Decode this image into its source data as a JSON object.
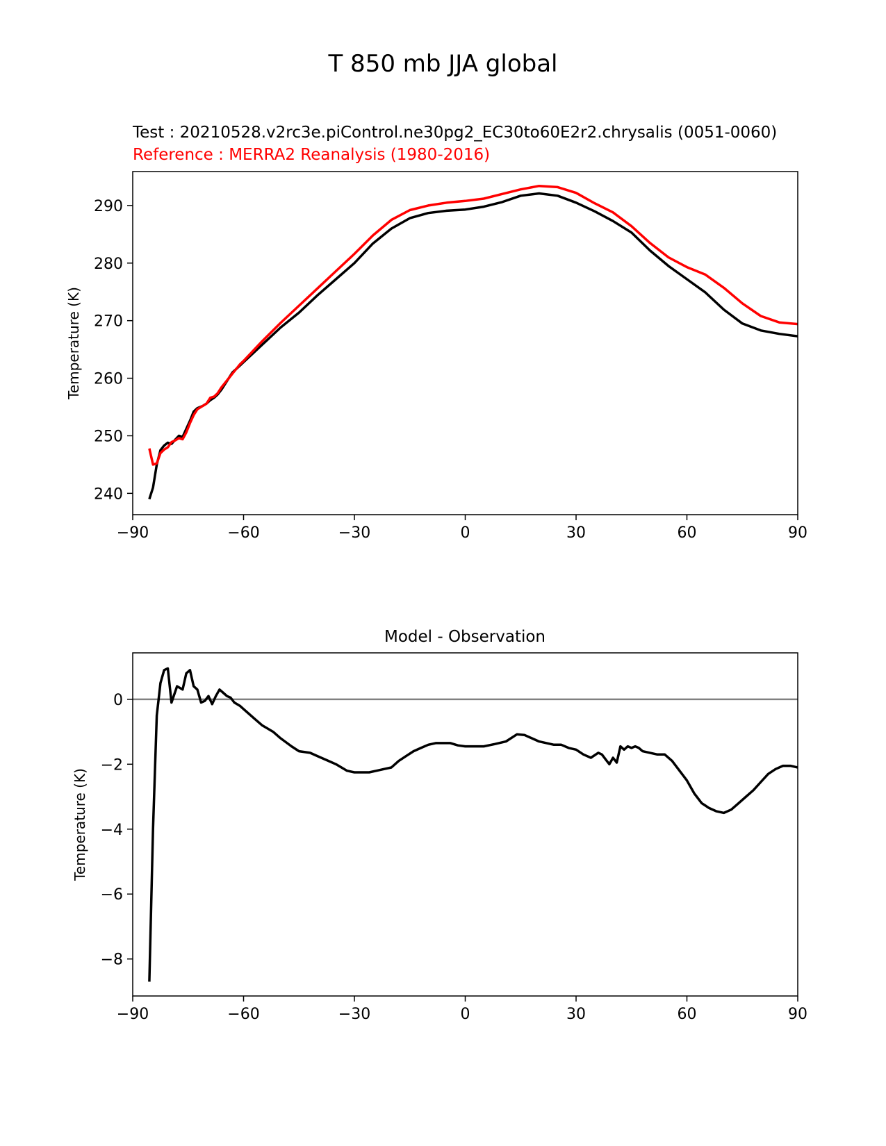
{
  "figure": {
    "title": "T 850 mb JJA global"
  },
  "chart_data": [
    {
      "type": "line",
      "test_label": "Test : 20210528.v2rc3e.piControl.ne30pg2_EC30to60E2r2.chrysalis (0051-0060)",
      "reference_label": "Reference : MERRA2 Reanalysis (1980-2016)",
      "xlabel": "",
      "ylabel": "Temperature (K)",
      "xlim": [
        -90,
        90
      ],
      "ylim": [
        236.3,
        295.9
      ],
      "xticks": [
        -90,
        -60,
        -30,
        0,
        30,
        60,
        90
      ],
      "xtick_labels": [
        "−90",
        "−60",
        "−30",
        "0",
        "30",
        "60",
        "90"
      ],
      "yticks": [
        240,
        250,
        260,
        270,
        280,
        290
      ],
      "ytick_labels": [
        "240",
        "250",
        "260",
        "270",
        "280",
        "290"
      ],
      "colors": {
        "test": "#000000",
        "reference": "#ff0000"
      },
      "series": [
        {
          "name": "Test",
          "color": "#000000",
          "x": [
            -85.5,
            -84.5,
            -83.5,
            -82.5,
            -81.5,
            -80.5,
            -79.5,
            -78.5,
            -77.5,
            -76.5,
            -75.5,
            -74.5,
            -73.5,
            -72.5,
            -71,
            -70,
            -69,
            -68,
            -67,
            -66,
            -65,
            -64,
            -63,
            -62,
            -61,
            -60,
            -55,
            -50,
            -45,
            -40,
            -35,
            -30,
            -25,
            -20,
            -15,
            -10,
            -5,
            0,
            5,
            10,
            15,
            20,
            25,
            30,
            35,
            40,
            45,
            50,
            55,
            60,
            65,
            70,
            75,
            80,
            85,
            90
          ],
          "values": [
            239.0,
            241.0,
            245.0,
            247.5,
            248.3,
            248.8,
            248.6,
            249.3,
            250.0,
            249.8,
            251.2,
            252.6,
            254.2,
            254.8,
            255.2,
            255.6,
            256.2,
            256.6,
            257.2,
            258.0,
            259.0,
            260.0,
            261.0,
            261.6,
            262.2,
            262.8,
            265.8,
            268.8,
            271.4,
            274.4,
            277.2,
            280.0,
            283.4,
            286.0,
            287.8,
            288.7,
            289.1,
            289.3,
            289.8,
            290.6,
            291.7,
            292.1,
            291.7,
            290.5,
            289.0,
            287.3,
            285.3,
            282.2,
            279.5,
            277.2,
            274.9,
            271.9,
            269.5,
            268.3,
            267.7,
            267.3
          ]
        },
        {
          "name": "Reference",
          "color": "#ff0000",
          "x": [
            -85.5,
            -84.5,
            -83.5,
            -82.5,
            -81.5,
            -80.5,
            -79.5,
            -78.5,
            -77.5,
            -76.5,
            -75.5,
            -74.5,
            -73.5,
            -72.5,
            -71,
            -70,
            -69,
            -68,
            -67,
            -66,
            -65,
            -64,
            -63,
            -62,
            -61,
            -60,
            -55,
            -50,
            -45,
            -40,
            -35,
            -30,
            -25,
            -20,
            -15,
            -10,
            -5,
            0,
            5,
            10,
            15,
            20,
            25,
            30,
            35,
            40,
            45,
            50,
            55,
            60,
            65,
            70,
            75,
            80,
            85,
            90
          ],
          "values": [
            247.8,
            245.0,
            245.2,
            247.0,
            247.6,
            248.0,
            248.9,
            249.2,
            249.6,
            249.4,
            250.6,
            252.2,
            253.6,
            254.6,
            255.2,
            255.6,
            256.6,
            256.8,
            257.4,
            258.4,
            259.2,
            260.0,
            260.8,
            261.6,
            262.4,
            263.0,
            266.4,
            269.6,
            272.6,
            275.6,
            278.6,
            281.6,
            284.8,
            287.5,
            289.2,
            290.0,
            290.5,
            290.8,
            291.2,
            292.0,
            292.8,
            293.4,
            293.2,
            292.2,
            290.4,
            288.8,
            286.4,
            283.5,
            281.0,
            279.3,
            278.0,
            275.7,
            273.0,
            270.8,
            269.7,
            269.4
          ]
        }
      ]
    },
    {
      "type": "line",
      "title": "Model - Observation",
      "xlabel": "",
      "ylabel": "Temperature (K)",
      "xlim": [
        -90,
        90
      ],
      "ylim": [
        -9.14,
        1.43
      ],
      "xticks": [
        -90,
        -60,
        -30,
        0,
        30,
        60,
        90
      ],
      "xtick_labels": [
        "−90",
        "−60",
        "−30",
        "0",
        "30",
        "60",
        "90"
      ],
      "yticks": [
        -8,
        -6,
        -4,
        -2,
        0
      ],
      "ytick_labels": [
        "−8",
        "−6",
        "−4",
        "−2",
        "0"
      ],
      "reference_line": {
        "y": 0,
        "color": "#808080"
      },
      "series": [
        {
          "name": "Model - Observation",
          "color": "#000000",
          "x": [
            -85.5,
            -84.5,
            -83.5,
            -82.5,
            -81.5,
            -80.5,
            -79.5,
            -78,
            -76.5,
            -75.5,
            -74.5,
            -73.5,
            -72.5,
            -71.5,
            -70.5,
            -69.5,
            -68.5,
            -67.5,
            -66.5,
            -65.5,
            -64.5,
            -63.5,
            -62.5,
            -61,
            -60,
            -57,
            -55,
            -52,
            -50,
            -47,
            -45,
            -42,
            -40,
            -37,
            -35,
            -32,
            -30,
            -28,
            -26,
            -24,
            -22,
            -20,
            -18,
            -16,
            -14,
            -12,
            -10,
            -8,
            -6,
            -4,
            -2,
            0,
            2,
            5,
            8,
            11,
            14,
            16,
            18,
            20,
            22,
            24,
            26,
            28,
            30,
            32,
            34,
            36,
            37,
            38,
            39,
            40,
            41,
            42,
            43,
            44,
            45,
            46,
            47,
            48,
            50,
            52,
            54,
            56,
            58,
            60,
            62,
            64,
            66,
            68,
            70,
            72,
            74,
            76,
            78,
            80,
            82,
            84,
            86,
            88,
            90
          ],
          "values": [
            -8.7,
            -4.0,
            -0.5,
            0.5,
            0.9,
            0.95,
            -0.1,
            0.4,
            0.3,
            0.8,
            0.9,
            0.4,
            0.3,
            -0.1,
            -0.05,
            0.1,
            -0.15,
            0.1,
            0.3,
            0.2,
            0.1,
            0.05,
            -0.1,
            -0.2,
            -0.3,
            -0.6,
            -0.8,
            -1.0,
            -1.2,
            -1.45,
            -1.6,
            -1.65,
            -1.75,
            -1.9,
            -2.0,
            -2.2,
            -2.25,
            -2.25,
            -2.25,
            -2.2,
            -2.15,
            -2.1,
            -1.9,
            -1.75,
            -1.6,
            -1.5,
            -1.4,
            -1.35,
            -1.35,
            -1.35,
            -1.42,
            -1.45,
            -1.45,
            -1.45,
            -1.38,
            -1.3,
            -1.08,
            -1.1,
            -1.2,
            -1.3,
            -1.35,
            -1.4,
            -1.4,
            -1.5,
            -1.55,
            -1.7,
            -1.8,
            -1.65,
            -1.7,
            -1.85,
            -2.0,
            -1.8,
            -1.95,
            -1.45,
            -1.55,
            -1.45,
            -1.5,
            -1.45,
            -1.5,
            -1.6,
            -1.65,
            -1.7,
            -1.7,
            -1.9,
            -2.2,
            -2.5,
            -2.9,
            -3.2,
            -3.35,
            -3.45,
            -3.5,
            -3.4,
            -3.2,
            -3.0,
            -2.8,
            -2.55,
            -2.3,
            -2.15,
            -2.05,
            -2.05,
            -2.1
          ]
        }
      ]
    }
  ]
}
